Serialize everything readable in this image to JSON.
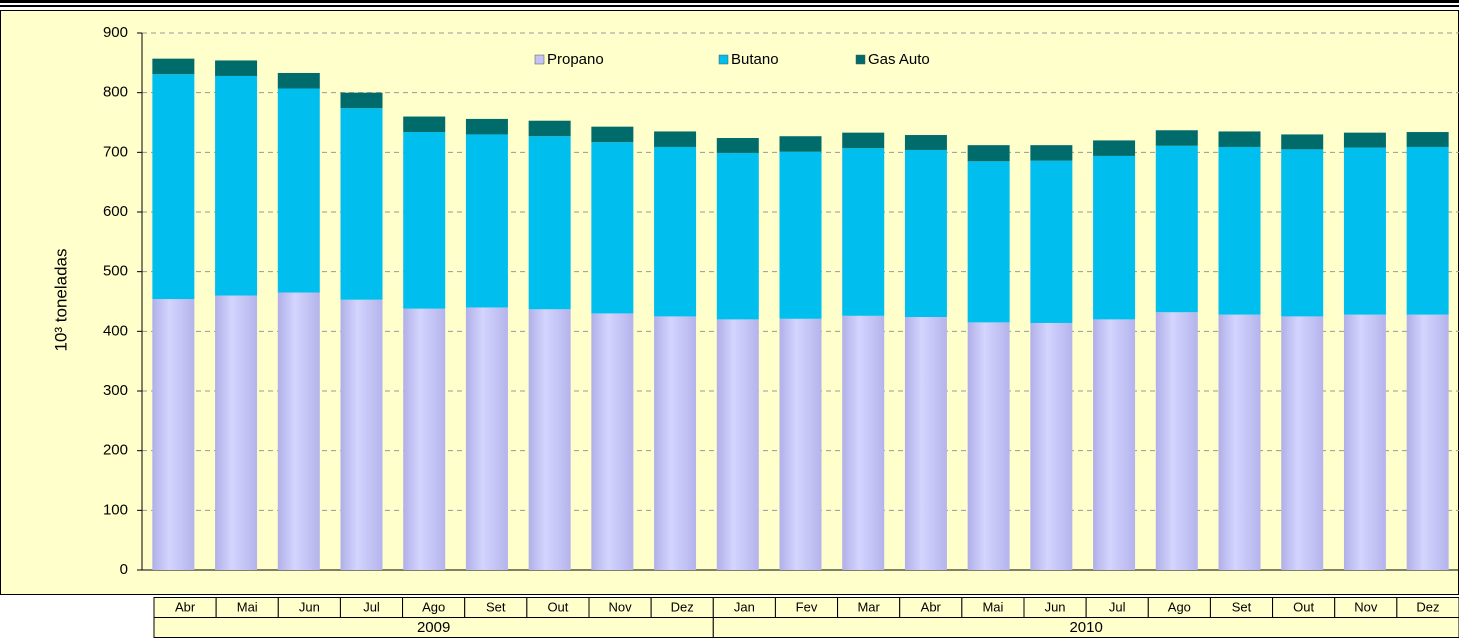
{
  "chart_data": {
    "type": "stacked_bar",
    "ylabel": "10³ toneladas",
    "categories": [
      "Abr",
      "Mai",
      "Jun",
      "Jul",
      "Ago",
      "Set",
      "Out",
      "Nov",
      "Dez",
      "Jan",
      "Fev",
      "Mar",
      "Abr",
      "Mai",
      "Jun",
      "Jul",
      "Ago",
      "Set",
      "Out",
      "Nov",
      "Dez"
    ],
    "x_groups": [
      {
        "label": "2009",
        "count": 9
      },
      {
        "label": "2010",
        "count": 12
      }
    ],
    "series": [
      {
        "name": "Propano",
        "color": "#c4c4f4",
        "values": [
          454,
          460,
          465,
          453,
          438,
          440,
          437,
          430,
          425,
          420,
          421,
          426,
          424,
          415,
          414,
          420,
          432,
          428,
          425,
          428,
          428
        ]
      },
      {
        "name": "Butano",
        "color": "#00bfee",
        "values": [
          377,
          368,
          342,
          321,
          296,
          290,
          290,
          287,
          284,
          279,
          280,
          281,
          280,
          270,
          272,
          274,
          279,
          281,
          280,
          280,
          281
        ]
      },
      {
        "name": "Gas Auto",
        "color": "#006b6b",
        "values": [
          26,
          26,
          26,
          26,
          26,
          26,
          26,
          26,
          26,
          25,
          26,
          26,
          25,
          27,
          26,
          26,
          26,
          26,
          25,
          25,
          25
        ]
      }
    ],
    "ylim": [
      0,
      900
    ],
    "yticks": [
      0,
      100,
      200,
      300,
      400,
      500,
      600,
      700,
      800,
      900
    ],
    "grid": true,
    "legend": "top"
  }
}
